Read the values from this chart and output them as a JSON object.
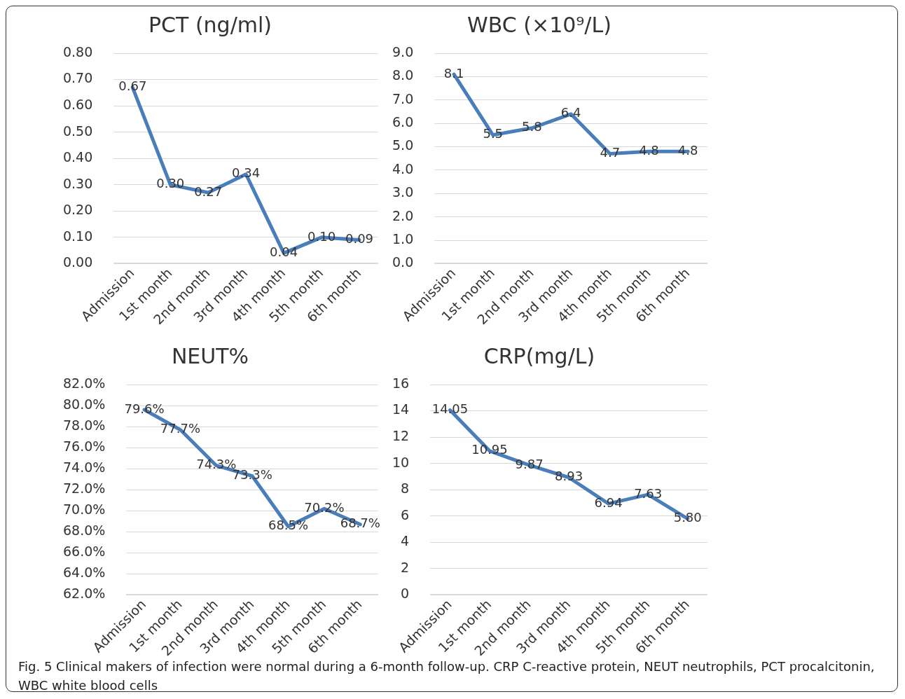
{
  "chart_data": [
    {
      "type": "line",
      "title": "PCT (ng/ml)",
      "categories": [
        "Admission",
        "1st month",
        "2nd month",
        "3rd month",
        "4th month",
        "5th month",
        "6th month"
      ],
      "series": [
        {
          "color": "#4a7ebb",
          "values": [
            0.67,
            0.3,
            0.27,
            0.34,
            0.04,
            0.1,
            0.09
          ],
          "value_labels": [
            "0.67",
            "0.30",
            "0.27",
            "0.34",
            "0.04",
            "0.10",
            "0.09"
          ]
        }
      ],
      "ylim": [
        0,
        0.8
      ],
      "yticks": [
        {
          "value": 0,
          "label": "0.00"
        },
        {
          "value": 0.1,
          "label": "0.10"
        },
        {
          "value": 0.2,
          "label": "0.20"
        },
        {
          "value": 0.3,
          "label": "0.30"
        },
        {
          "value": 0.4,
          "label": "0.40"
        },
        {
          "value": 0.5,
          "label": "0.50"
        },
        {
          "value": 0.6,
          "label": "0.60"
        },
        {
          "value": 0.7,
          "label": "0.70"
        },
        {
          "value": 0.8,
          "label": "0.80"
        }
      ],
      "grid": "y",
      "legend": false,
      "marker": "none",
      "line_style": "solid"
    },
    {
      "type": "line",
      "title": "WBC (×10⁹/L)",
      "categories": [
        "Admission",
        "1st month",
        "2nd month",
        "3rd month",
        "4th month",
        "5th month",
        "6th month"
      ],
      "series": [
        {
          "color": "#4a7ebb",
          "values": [
            8.1,
            5.5,
            5.8,
            6.4,
            4.7,
            4.8,
            4.8
          ],
          "value_labels": [
            "8.1",
            "5.5",
            "5.8",
            "6.4",
            "4.7",
            "4.8",
            "4.8"
          ]
        }
      ],
      "ylim": [
        0,
        9
      ],
      "yticks": [
        {
          "value": 0,
          "label": "0.0"
        },
        {
          "value": 1,
          "label": "1.0"
        },
        {
          "value": 2,
          "label": "2.0"
        },
        {
          "value": 3,
          "label": "3.0"
        },
        {
          "value": 4,
          "label": "4.0"
        },
        {
          "value": 5,
          "label": "5.0"
        },
        {
          "value": 6,
          "label": "6.0"
        },
        {
          "value": 7,
          "label": "7.0"
        },
        {
          "value": 8,
          "label": "8.0"
        },
        {
          "value": 9,
          "label": "9.0"
        }
      ],
      "grid": "y",
      "legend": false,
      "marker": "none",
      "line_style": "solid"
    },
    {
      "type": "line",
      "title": "NEUT%",
      "categories": [
        "Admission",
        "1st month",
        "2nd month",
        "3rd month",
        "4th month",
        "5th month",
        "6th month"
      ],
      "series": [
        {
          "color": "#4a7ebb",
          "values": [
            79.6,
            77.7,
            74.3,
            73.3,
            68.5,
            70.2,
            68.7
          ],
          "value_labels": [
            "79.6%",
            "77.7%",
            "74.3%",
            "73.3%",
            "68.5%",
            "70.2%",
            "68.7%"
          ]
        }
      ],
      "ylim": [
        62,
        82
      ],
      "yticks": [
        {
          "value": 62,
          "label": "62.0%"
        },
        {
          "value": 64,
          "label": "64.0%"
        },
        {
          "value": 66,
          "label": "66.0%"
        },
        {
          "value": 68,
          "label": "68.0%"
        },
        {
          "value": 70,
          "label": "70.0%"
        },
        {
          "value": 72,
          "label": "72.0%"
        },
        {
          "value": 74,
          "label": "74.0%"
        },
        {
          "value": 76,
          "label": "76.0%"
        },
        {
          "value": 78,
          "label": "78.0%"
        },
        {
          "value": 80,
          "label": "80.0%"
        },
        {
          "value": 82,
          "label": "82.0%"
        }
      ],
      "grid": "y",
      "legend": false,
      "marker": "none",
      "line_style": "solid"
    },
    {
      "type": "line",
      "title": "CRP(mg/L)",
      "categories": [
        "Admission",
        "1st month",
        "2nd month",
        "3rd month",
        "4th month",
        "5th month",
        "6th month"
      ],
      "series": [
        {
          "color": "#4a7ebb",
          "values": [
            14.05,
            10.95,
            9.87,
            8.93,
            6.94,
            7.63,
            5.8
          ],
          "value_labels": [
            "14.05",
            "10.95",
            "9.87",
            "8.93",
            "6.94",
            "7.63",
            "5.80"
          ]
        }
      ],
      "ylim": [
        0,
        16
      ],
      "yticks": [
        0,
        2,
        4,
        6,
        8,
        10,
        12,
        14,
        16
      ],
      "grid": "y",
      "legend": false,
      "marker": "none",
      "line_style": "solid",
      "annotations": [
        "Fig. 5 Clinical makers of infection were normal during a 6-month follow-up. CRP C-reactive protein, NEUT neutrophils, PCT procalcitonin, WBC white blood cells"
      ]
    }
  ]
}
